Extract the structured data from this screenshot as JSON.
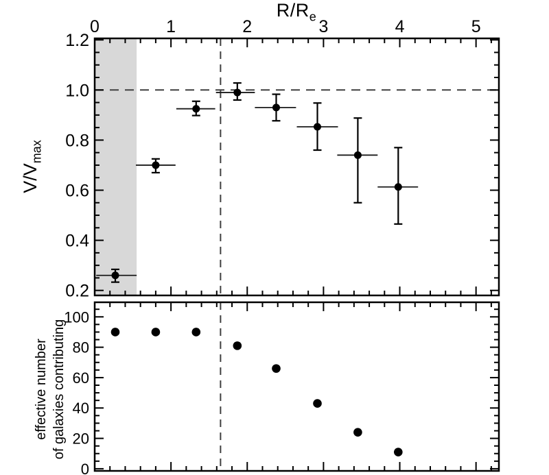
{
  "colors": {
    "background": "#ffffff",
    "frame": "#000000",
    "point": "#000000",
    "error_bar": "#000000",
    "bin_line": "#1a1a1a",
    "dash": "#3f3f3f",
    "shade": "#d8d8d8",
    "tick_label": "#000000"
  },
  "labels": {
    "x_axis_title_main": "R/R",
    "x_axis_title_sub": "e",
    "y_axis_title_top_main": "V/V",
    "y_axis_title_top_sub": "max",
    "y_axis_title_bottom_line1": "effective number",
    "y_axis_title_bottom_line2": "of galaxies contributing"
  },
  "chart_data": [
    {
      "type": "scatter",
      "panel": "top",
      "title": "",
      "xlabel": "R/R_e",
      "ylabel": "V/V_max",
      "xlim": [
        0,
        5.3
      ],
      "ylim": [
        0.18,
        1.206
      ],
      "grid": false,
      "x_major": [
        0,
        1,
        2,
        3,
        4,
        5
      ],
      "x_tick_labels": [
        "0",
        "1",
        "2",
        "3",
        "4",
        "5"
      ],
      "x_minor_step": 0.2,
      "y_major": [
        0.2,
        0.4,
        0.6,
        0.8,
        1.0,
        1.2
      ],
      "y_tick_labels": [
        "0.2",
        "0.4",
        "0.6",
        "0.8",
        "1.0",
        "1.2"
      ],
      "y_minor_step": 0.05,
      "shade_x": [
        0,
        0.55
      ],
      "hline": 1.0,
      "vline": 1.65,
      "points": [
        {
          "x": 0.27,
          "xlo": 0.02,
          "xhi": 0.55,
          "y": 0.26,
          "ylo": 0.233,
          "yhi": 0.284
        },
        {
          "x": 0.8,
          "xlo": 0.54,
          "xhi": 1.06,
          "y": 0.7,
          "ylo": 0.67,
          "yhi": 0.725
        },
        {
          "x": 1.33,
          "xlo": 1.07,
          "xhi": 1.58,
          "y": 0.925,
          "ylo": 0.898,
          "yhi": 0.955
        },
        {
          "x": 1.87,
          "xlo": 1.59,
          "xhi": 2.1,
          "y": 0.99,
          "ylo": 0.96,
          "yhi": 1.028
        },
        {
          "x": 2.38,
          "xlo": 2.1,
          "xhi": 2.64,
          "y": 0.93,
          "ylo": 0.877,
          "yhi": 0.983
        },
        {
          "x": 2.92,
          "xlo": 2.65,
          "xhi": 3.19,
          "y": 0.853,
          "ylo": 0.76,
          "yhi": 0.948
        },
        {
          "x": 3.45,
          "xlo": 3.18,
          "xhi": 3.71,
          "y": 0.74,
          "ylo": 0.55,
          "yhi": 0.888
        },
        {
          "x": 3.98,
          "xlo": 3.71,
          "xhi": 4.24,
          "y": 0.613,
          "ylo": 0.465,
          "yhi": 0.77
        }
      ]
    },
    {
      "type": "scatter",
      "panel": "bottom",
      "title": "",
      "xlabel": "",
      "ylabel": "effective number of galaxies contributing",
      "xlim": [
        0,
        5.3
      ],
      "ylim": [
        -1.4,
        109.6
      ],
      "grid": false,
      "x_major": [
        0,
        1,
        2,
        3,
        4,
        5
      ],
      "x_tick_labels": [],
      "x_minor_step": 0.2,
      "y_major": [
        0,
        20,
        40,
        60,
        80,
        100
      ],
      "y_tick_labels": [
        "0",
        "20",
        "40",
        "60",
        "80",
        "100"
      ],
      "y_minor_step": 5,
      "vline": 1.65,
      "points": [
        {
          "x": 0.27,
          "y": 90
        },
        {
          "x": 0.8,
          "y": 90
        },
        {
          "x": 1.33,
          "y": 90
        },
        {
          "x": 1.87,
          "y": 81
        },
        {
          "x": 2.38,
          "y": 66
        },
        {
          "x": 2.92,
          "y": 43
        },
        {
          "x": 3.45,
          "y": 24
        },
        {
          "x": 3.98,
          "y": 11
        }
      ]
    }
  ]
}
